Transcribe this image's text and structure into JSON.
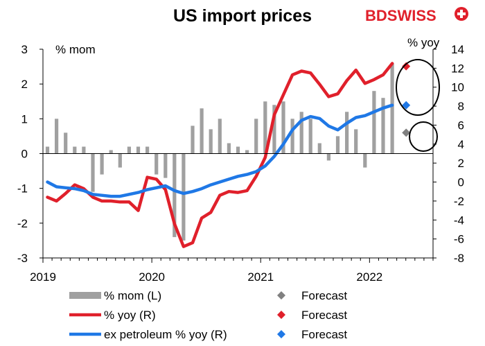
{
  "header": {
    "brand_part1": "BD",
    "brand_part2": "SWISS",
    "brand_color": "#e0202b"
  },
  "chart_data": {
    "type": "bar+line",
    "title": "US import prices",
    "left_axis": {
      "label": "% mom",
      "ylim": [
        -3,
        3
      ],
      "ticks": [
        "3",
        "2",
        "1",
        "0",
        "-1",
        "-2",
        "-3"
      ]
    },
    "right_axis": {
      "label": "% yoy",
      "ylim": [
        -8,
        14
      ],
      "ticks": [
        "14",
        "12",
        "10",
        "8",
        "6",
        "4",
        "2",
        "0",
        "-2",
        "-4",
        "-6",
        "-8"
      ]
    },
    "x_axis": {
      "start": "2019-01",
      "end": "2022-07",
      "tick_labels": [
        "2019",
        "2020",
        "2021",
        "2022"
      ]
    },
    "grid": false,
    "legend_position": "bottom",
    "months": [
      "2019-01",
      "2019-02",
      "2019-03",
      "2019-04",
      "2019-05",
      "2019-06",
      "2019-07",
      "2019-08",
      "2019-09",
      "2019-10",
      "2019-11",
      "2019-12",
      "2020-01",
      "2020-02",
      "2020-03",
      "2020-04",
      "2020-05",
      "2020-06",
      "2020-07",
      "2020-08",
      "2020-09",
      "2020-10",
      "2020-11",
      "2020-12",
      "2021-01",
      "2021-02",
      "2021-03",
      "2021-04",
      "2021-05",
      "2021-06",
      "2021-07",
      "2021-08",
      "2021-09",
      "2021-10",
      "2021-11",
      "2021-12",
      "2022-01",
      "2022-02",
      "2022-03",
      "2022-04"
    ],
    "series": [
      {
        "name": "% mom (L)",
        "type": "bar",
        "axis": "left",
        "color": "#a0a0a0",
        "values": [
          0.2,
          1.0,
          0.6,
          0.2,
          0.2,
          -1.1,
          -0.6,
          0.1,
          -0.4,
          0.2,
          0.2,
          0.2,
          -0.6,
          -0.7,
          -2.4,
          -2.5,
          0.8,
          1.3,
          0.7,
          1.0,
          0.3,
          0.2,
          0.1,
          1.0,
          1.5,
          1.4,
          1.5,
          1.0,
          1.2,
          1.0,
          0.3,
          -0.2,
          0.5,
          1.2,
          0.7,
          -0.4,
          1.8,
          1.6,
          2.6
        ]
      },
      {
        "name": "% yoy (R)",
        "type": "line",
        "axis": "right",
        "color": "#e0202b",
        "values": [
          -1.6,
          -2.0,
          -1.2,
          -0.3,
          -0.7,
          -1.6,
          -2.0,
          -2.0,
          -2.1,
          -2.1,
          -3.0,
          0.5,
          0.3,
          -0.8,
          -4.4,
          -6.8,
          -6.4,
          -3.8,
          -3.2,
          -1.4,
          -1.0,
          -1.1,
          -0.9,
          0.6,
          2.6,
          7.1,
          9.2,
          11.3,
          11.7,
          11.5,
          10.3,
          9.0,
          9.3,
          10.7,
          11.8,
          10.4,
          10.8,
          11.3,
          12.5
        ]
      },
      {
        "name": "ex petroleum % yoy (R)",
        "type": "line",
        "axis": "right",
        "color": "#1f78e6",
        "values": [
          0.0,
          -0.5,
          -0.6,
          -0.7,
          -0.9,
          -1.3,
          -1.4,
          -1.5,
          -1.5,
          -1.3,
          -1.1,
          -0.8,
          -0.6,
          -0.4,
          -0.9,
          -1.2,
          -1.0,
          -0.7,
          -0.3,
          0.0,
          0.3,
          0.6,
          0.8,
          1.1,
          1.7,
          2.7,
          4.0,
          5.5,
          6.5,
          6.9,
          6.7,
          5.9,
          5.5,
          6.2,
          6.8,
          7.0,
          7.4,
          7.8,
          8.1
        ]
      }
    ],
    "forecasts": [
      {
        "name": "Forecast",
        "of": "% mom (L)",
        "axis": "left",
        "month": "2022-04",
        "value": 0.6,
        "color": "#808080"
      },
      {
        "name": "Forecast",
        "of": "% yoy (R)",
        "axis": "right",
        "month": "2022-04",
        "value": 12.2,
        "color": "#e0202b"
      },
      {
        "name": "Forecast",
        "of": "ex petroleum % yoy (R)",
        "axis": "right",
        "month": "2022-04",
        "value": 8.1,
        "color": "#1f78e6"
      }
    ],
    "legend": [
      {
        "label": "% mom (L)",
        "marker": "bar",
        "color": "#a0a0a0"
      },
      {
        "label": "Forecast",
        "marker": "diamond",
        "color": "#808080"
      },
      {
        "label": "% yoy (R)",
        "marker": "line",
        "color": "#e0202b"
      },
      {
        "label": "Forecast",
        "marker": "diamond",
        "color": "#e0202b"
      },
      {
        "label": "ex petroleum % yoy (R)",
        "marker": "line",
        "color": "#1f78e6"
      },
      {
        "label": "Forecast",
        "marker": "diamond",
        "color": "#1f78e6"
      }
    ]
  }
}
